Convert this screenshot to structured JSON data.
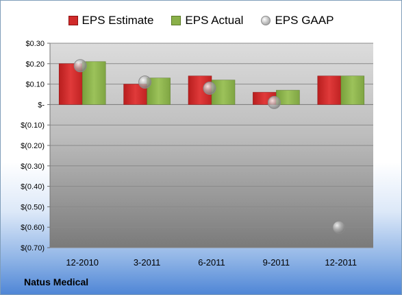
{
  "company": "Natus Medical",
  "colors": {
    "estimate": "#d02a2a",
    "actual": "#8ab049",
    "gaap": "#a8a8a8"
  },
  "chart_data": {
    "type": "bar",
    "title": "",
    "xlabel": "",
    "ylabel": "",
    "categories": [
      "12-2010",
      "3-2011",
      "6-2011",
      "9-2011",
      "12-2011"
    ],
    "series": [
      {
        "name": "EPS Estimate",
        "values": [
          0.2,
          0.1,
          0.14,
          0.06,
          0.14
        ]
      },
      {
        "name": "EPS Actual",
        "values": [
          0.21,
          0.13,
          0.12,
          0.07,
          0.14
        ]
      },
      {
        "name": "EPS GAAP",
        "type": "scatter",
        "values": [
          0.19,
          0.11,
          0.08,
          0.01,
          -0.6
        ]
      }
    ],
    "ylim": [
      -0.7,
      0.3
    ],
    "yticks": [
      0.3,
      0.2,
      0.1,
      0,
      -0.1,
      -0.2,
      -0.3,
      -0.4,
      -0.5,
      -0.6,
      -0.7
    ],
    "ytick_labels": [
      "$0.30",
      "$0.20",
      "$0.10",
      "$-",
      "$(0.10)",
      "$(0.20)",
      "$(0.30)",
      "$(0.40)",
      "$(0.50)",
      "$(0.60)",
      "$(0.70)"
    ],
    "legend_position": "top",
    "grid": true
  }
}
